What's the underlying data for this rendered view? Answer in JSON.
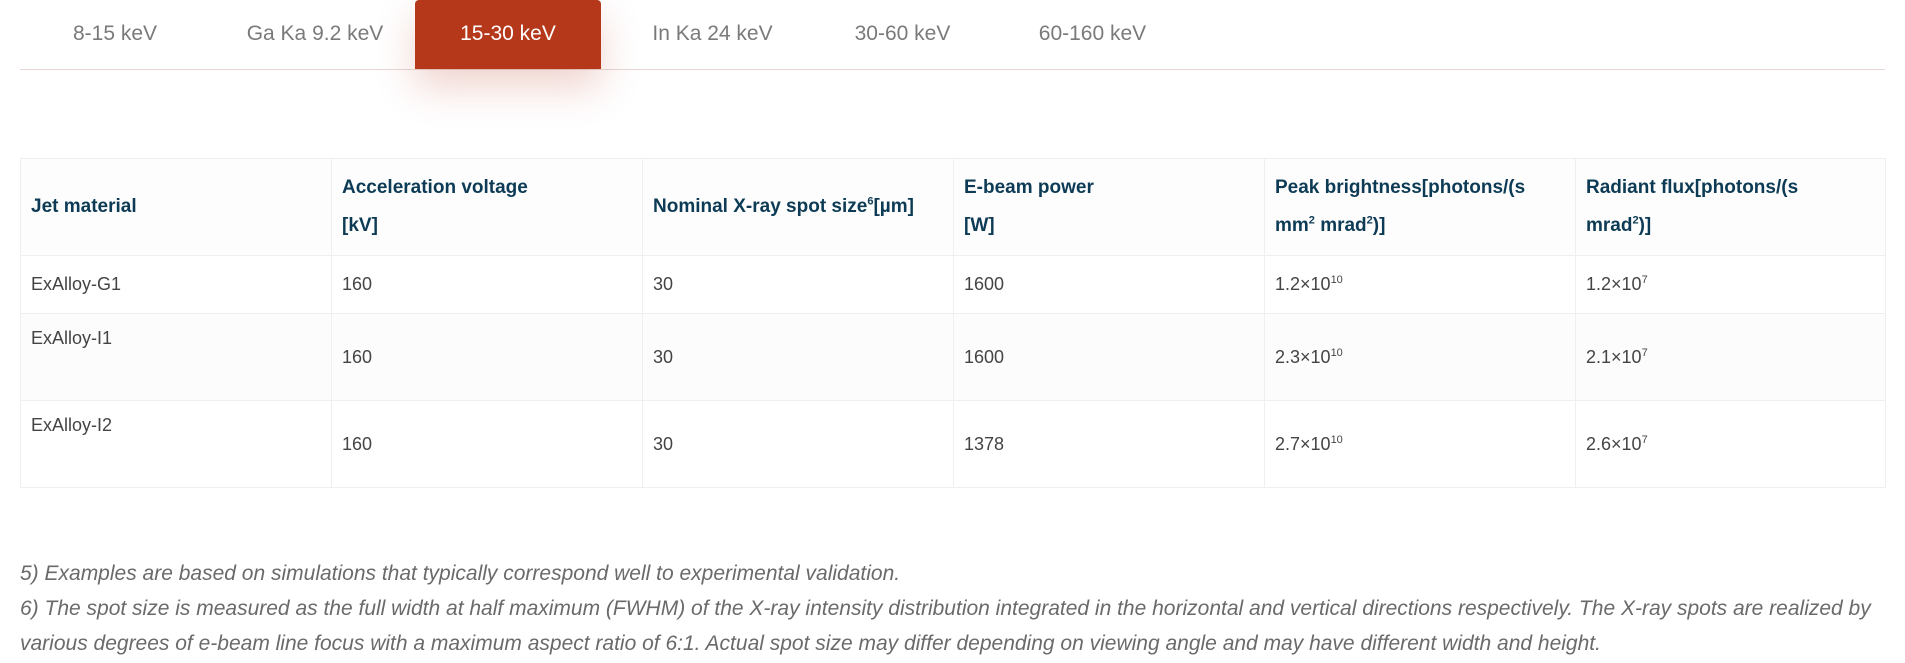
{
  "tabs": [
    {
      "label": "8-15 keV",
      "active": false
    },
    {
      "label": "Ga Ka 9.2 keV",
      "active": false
    },
    {
      "label": "15-30 keV",
      "active": true
    },
    {
      "label": "In Ka 24 keV",
      "active": false
    },
    {
      "label": "30-60 keV",
      "active": false
    },
    {
      "label": "60-160 keV",
      "active": false
    }
  ],
  "colors": {
    "active_tab": "#b5381a",
    "header_text": "#0d3b55"
  },
  "table": {
    "headers": {
      "jet_material": "Jet material",
      "accel_voltage": {
        "line1": "Acceleration voltage",
        "line2": "[kV]"
      },
      "spot_size": {
        "text": "Nominal X-ray spot size",
        "sup": "6",
        "unit": "[µm]"
      },
      "ebeam_power": {
        "line1": "E-beam power",
        "line2": "[W]"
      },
      "peak_brightness": {
        "line1": "Peak brightness[photons/(s",
        "line2a": "mm",
        "sup1": "2",
        "line2b": " mrad",
        "sup2": "2",
        "line2c": ")]"
      },
      "radiant_flux": {
        "line1": "Radiant flux[photons/(s",
        "line2a": "mrad",
        "sup": "2",
        "line2b": ")]"
      }
    },
    "rows": [
      {
        "material": "ExAlloy-G1",
        "voltage": "160",
        "spot": "30",
        "power": "1600",
        "brightness_base": "1.2×10",
        "brightness_exp": "10",
        "flux_base": "1.2×10",
        "flux_exp": "7"
      },
      {
        "material": "ExAlloy-I1",
        "voltage": "160",
        "spot": "30",
        "power": "1600",
        "brightness_base": "2.3×10",
        "brightness_exp": "10",
        "flux_base": "2.1×10",
        "flux_exp": "7"
      },
      {
        "material": "ExAlloy-I2",
        "voltage": "160",
        "spot": "30",
        "power": "1378",
        "brightness_base": "2.7×10",
        "brightness_exp": "10",
        "flux_base": "2.6×10",
        "flux_exp": "7"
      }
    ]
  },
  "notes": [
    "5) Examples are based on simulations that typically correspond well to experimental validation.",
    "6) The spot size is measured as the full width at half maximum (FWHM) of the X-ray intensity distribution integrated in the horizontal and vertical directions respectively. The X-ray spots are realized by various degrees of e-beam line focus with a maximum aspect ratio of 6:1. Actual spot size may differ depending on viewing angle and may have different width and height."
  ]
}
